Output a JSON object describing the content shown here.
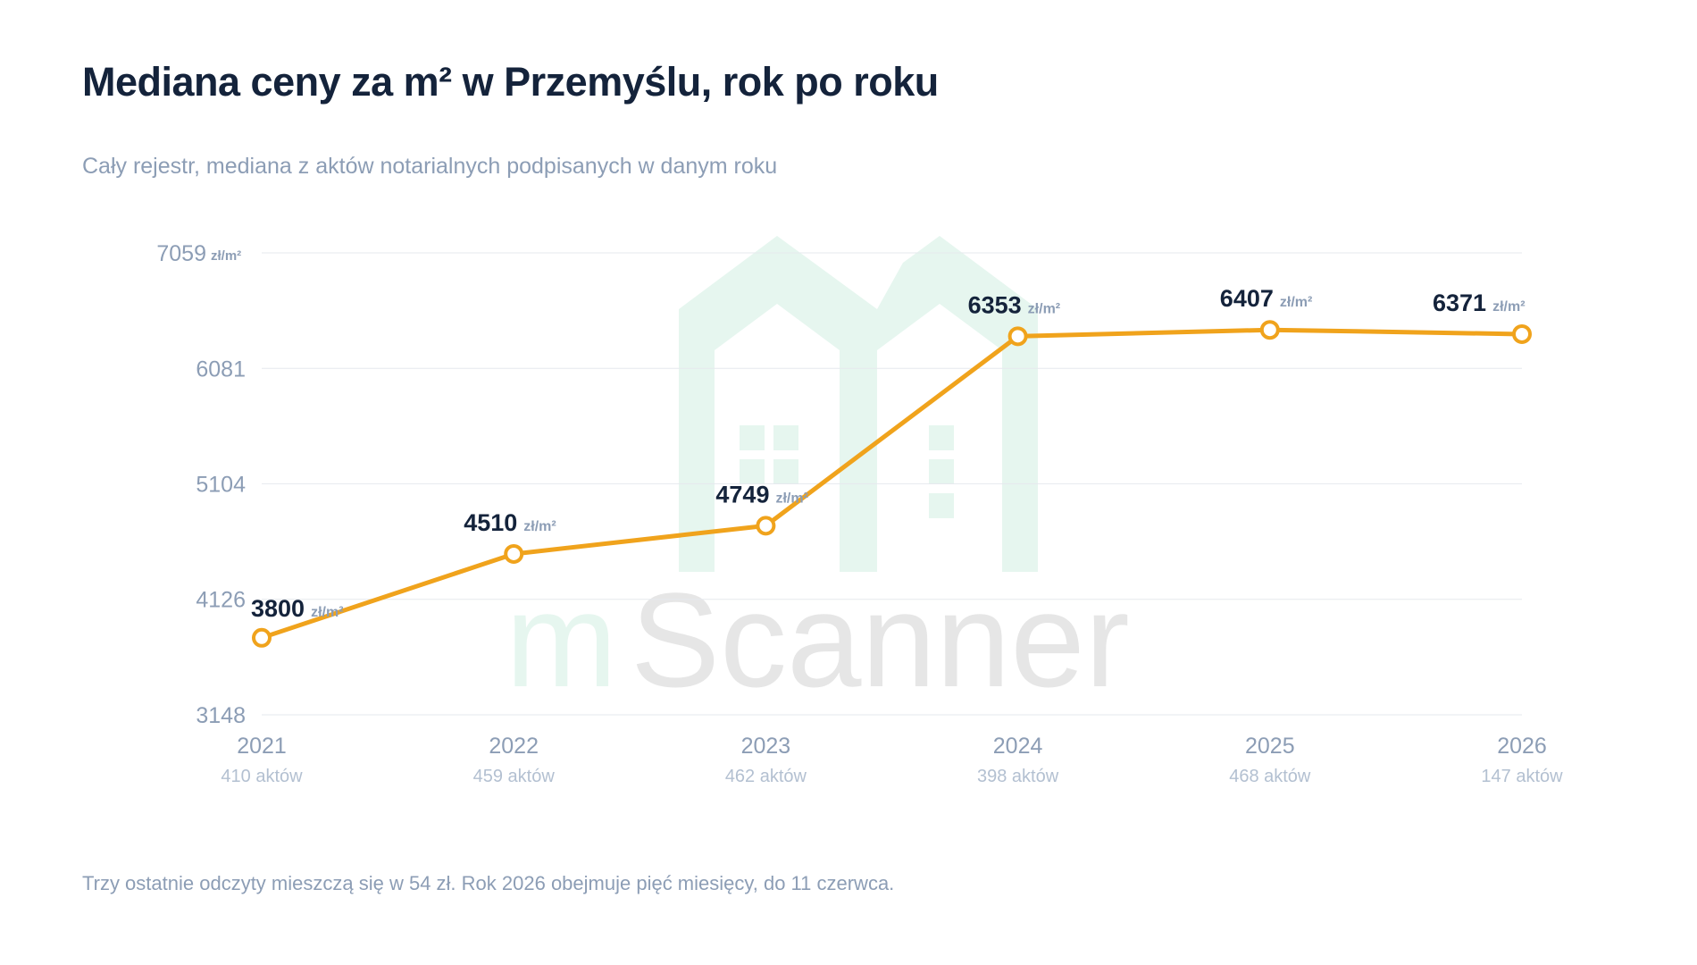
{
  "title": "Mediana ceny za m² w Przemyślu, rok po roku",
  "subtitle": "Cały rejestr, mediana z aktów notarialnych podpisanych w danym roku",
  "footnote": "Trzy ostatnie odczyty mieszczą się w 54 zł. Rok 2026 obejmuje pięć miesięcy, do 11 czerwca.",
  "watermark": {
    "text_left": "m",
    "text_right": "Scanner",
    "icon": "house-logo-icon"
  },
  "colors": {
    "line": "#f0a31c",
    "grid": "#e6e9ee",
    "axis_text": "#8c9db5",
    "label_text": "#14233b",
    "watermark_green": "#e6f6ef",
    "watermark_gray": "#e6e6e6"
  },
  "chart_data": {
    "type": "line",
    "categories": [
      "2021",
      "2022",
      "2023",
      "2024",
      "2025",
      "2026"
    ],
    "category_sublabels": [
      "410 aktów",
      "459 aktów",
      "462 aktów",
      "398 aktów",
      "468 aktów",
      "147 aktów"
    ],
    "values": [
      3800,
      4510,
      4749,
      6353,
      6407,
      6371
    ],
    "value_unit": "zł/m²",
    "yticks": [
      3148,
      4126,
      5104,
      6081,
      7059
    ],
    "top_tick_unit": "zł/m²",
    "ylim": [
      3148,
      7059
    ],
    "grid": true,
    "markers": "hollow-circle"
  }
}
